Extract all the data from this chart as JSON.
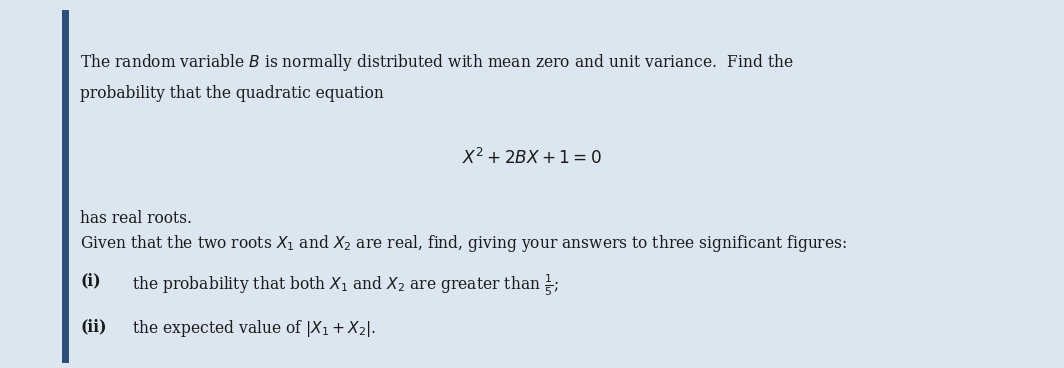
{
  "background_color": "#dce6f1",
  "left_bar_color": "#2e4d7b",
  "text_color": "#1a1a1a",
  "fig_width": 10.64,
  "fig_height": 3.68,
  "line1": "The random variable $B$ is normally distributed with mean zero and unit variance.  Find the",
  "line2": "probability that the quadratic equation",
  "equation": "$X^2 + 2BX + 1 = 0$",
  "line3": "has real roots.",
  "line4": "Given that the two roots $X_1$ and $X_2$ are real, find, giving your answers to three significant figures:",
  "label_i": "(i)",
  "line_i": "the probability that both $X_1$ and $X_2$ are greater than $\\frac{1}{5}$;",
  "label_ii": "(ii)",
  "line_ii": "the expected value of $|X_1 + X_2|$."
}
